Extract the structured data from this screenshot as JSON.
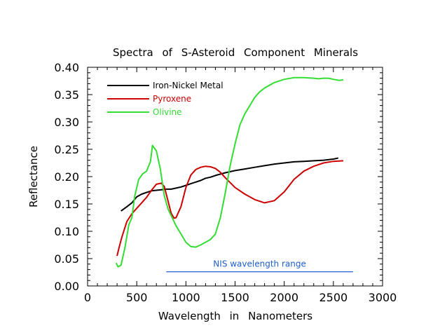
{
  "chart_data": {
    "type": "line",
    "title": "Spectra of S-Asteroid Component Minerals",
    "xlabel": "Wavelength in Nanometers",
    "ylabel": "Reflectance",
    "xlim": [
      0,
      3000
    ],
    "ylim": [
      0,
      0.4
    ],
    "xticks": [
      "0",
      "500",
      "1000",
      "1500",
      "2000",
      "2500",
      "3000"
    ],
    "yticks": [
      "0.00",
      "0.05",
      "0.10",
      "0.15",
      "0.20",
      "0.25",
      "0.30",
      "0.35",
      "0.40"
    ],
    "grid": false,
    "legend": "top-left",
    "series": [
      {
        "name": "Iron-Nickel Metal",
        "color": "#000000",
        "x": [
          340,
          400,
          450,
          500,
          550,
          600,
          650,
          700,
          750,
          800,
          850,
          900,
          950,
          1000,
          1050,
          1100,
          1150,
          1200,
          1250,
          1300,
          1400,
          1500,
          1600,
          1700,
          1800,
          1900,
          2000,
          2100,
          2200,
          2300,
          2400,
          2500,
          2550
        ],
        "y": [
          0.137,
          0.145,
          0.152,
          0.163,
          0.168,
          0.171,
          0.174,
          0.175,
          0.176,
          0.177,
          0.177,
          0.179,
          0.181,
          0.184,
          0.187,
          0.19,
          0.193,
          0.197,
          0.199,
          0.202,
          0.207,
          0.211,
          0.214,
          0.217,
          0.22,
          0.223,
          0.225,
          0.227,
          0.228,
          0.229,
          0.23,
          0.232,
          0.234
        ]
      },
      {
        "name": "Pyroxene",
        "color": "#cc0000",
        "x": [
          300,
          320,
          350,
          400,
          450,
          500,
          550,
          600,
          650,
          700,
          750,
          780,
          800,
          850,
          880,
          900,
          950,
          1000,
          1050,
          1100,
          1150,
          1200,
          1250,
          1300,
          1350,
          1400,
          1500,
          1600,
          1700,
          1800,
          1900,
          2000,
          2100,
          2200,
          2300,
          2400,
          2500,
          2600
        ],
        "y": [
          0.055,
          0.07,
          0.09,
          0.118,
          0.132,
          0.142,
          0.152,
          0.162,
          0.175,
          0.186,
          0.188,
          0.182,
          0.168,
          0.133,
          0.124,
          0.125,
          0.145,
          0.18,
          0.203,
          0.213,
          0.217,
          0.219,
          0.218,
          0.215,
          0.208,
          0.198,
          0.18,
          0.168,
          0.158,
          0.152,
          0.156,
          0.172,
          0.195,
          0.21,
          0.219,
          0.225,
          0.228,
          0.229
        ]
      },
      {
        "name": "Olivine",
        "color": "#33dd33",
        "x": [
          290,
          310,
          340,
          380,
          420,
          450,
          480,
          520,
          560,
          600,
          640,
          660,
          700,
          740,
          780,
          820,
          860,
          900,
          950,
          1000,
          1050,
          1100,
          1150,
          1200,
          1250,
          1300,
          1350,
          1400,
          1450,
          1500,
          1550,
          1600,
          1650,
          1700,
          1750,
          1800,
          1900,
          2000,
          2100,
          2200,
          2300,
          2350,
          2400,
          2450,
          2500,
          2560,
          2600
        ],
        "y": [
          0.042,
          0.035,
          0.038,
          0.07,
          0.112,
          0.125,
          0.165,
          0.195,
          0.205,
          0.21,
          0.228,
          0.257,
          0.247,
          0.214,
          0.165,
          0.14,
          0.125,
          0.11,
          0.095,
          0.08,
          0.072,
          0.071,
          0.075,
          0.08,
          0.085,
          0.095,
          0.125,
          0.17,
          0.22,
          0.26,
          0.295,
          0.315,
          0.33,
          0.345,
          0.355,
          0.362,
          0.372,
          0.378,
          0.381,
          0.381,
          0.38,
          0.379,
          0.38,
          0.38,
          0.378,
          0.376,
          0.377
        ]
      }
    ],
    "annotation": {
      "text": "NIS wavelength range",
      "color": "#1f5fd0",
      "x_start": 800,
      "x_end": 2700,
      "y": 0.026
    }
  }
}
